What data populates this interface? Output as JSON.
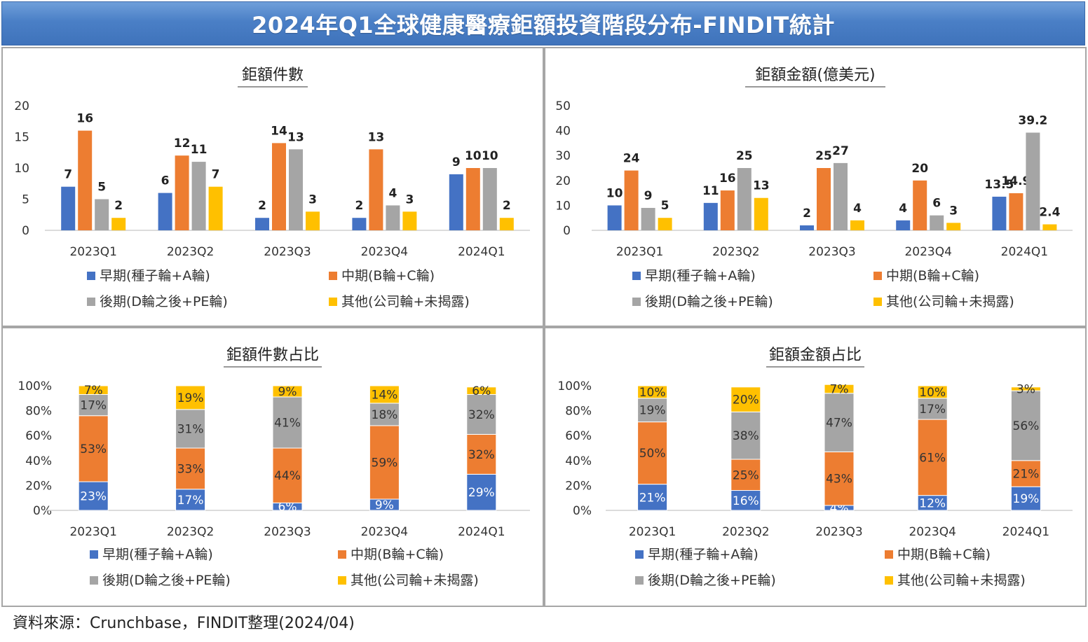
{
  "title": "2024年Q1全球健康醫療鉅額投資階段分布-FINDIT統計",
  "source": "資料來源：Crunchbase，FINDIT整理(2024/04)",
  "colors": {
    "early": "#4472c4",
    "mid": "#ed7d31",
    "late": "#a5a5a5",
    "other": "#ffc000"
  },
  "chart_data": [
    {
      "type": "bar",
      "title": "鉅額件數",
      "categories": [
        "2023Q1",
        "2023Q2",
        "2023Q3",
        "2023Q4",
        "2024Q1"
      ],
      "series": [
        {
          "name": "早期(種子輪+A輪)",
          "values": [
            7,
            6,
            2,
            2,
            9
          ],
          "labels": [
            "7",
            "6",
            "2",
            "2",
            "9"
          ]
        },
        {
          "name": "中期(B輪+C輪)",
          "values": [
            16,
            12,
            14,
            13,
            10
          ],
          "labels": [
            "16",
            "12",
            "14",
            "13",
            "10"
          ]
        },
        {
          "name": "後期(D輪之後+PE輪)",
          "values": [
            5,
            11,
            13,
            4,
            10
          ],
          "labels": [
            "5",
            "11",
            "13",
            "4",
            "10"
          ]
        },
        {
          "name": "其他(公司輪+未揭露)",
          "values": [
            2,
            7,
            3,
            3,
            2
          ],
          "labels": [
            "2",
            "7",
            "3",
            "3",
            "2"
          ]
        }
      ],
      "ylim": [
        0,
        20
      ],
      "yticks": [
        "0",
        "5",
        "10",
        "15",
        "20"
      ],
      "ytick_values": [
        0,
        5,
        10,
        15,
        20
      ],
      "legend_position": "bottom",
      "grid": false
    },
    {
      "type": "bar",
      "title": "鉅額金額(億美元)",
      "categories": [
        "2023Q1",
        "2023Q2",
        "2023Q3",
        "2023Q4",
        "2024Q1"
      ],
      "series": [
        {
          "name": "早期(種子輪+A輪)",
          "values": [
            10,
            11,
            2,
            4,
            13.5
          ],
          "labels": [
            "10",
            "11",
            "2",
            "4",
            "13.5"
          ]
        },
        {
          "name": "中期(B輪+C輪)",
          "values": [
            24,
            16,
            25,
            20,
            14.9
          ],
          "labels": [
            "24",
            "16",
            "25",
            "20",
            "14.9"
          ]
        },
        {
          "name": "後期(D輪之後+PE輪)",
          "values": [
            9,
            25,
            27,
            6,
            39.2
          ],
          "labels": [
            "9",
            "25",
            "27",
            "6",
            "39.2"
          ]
        },
        {
          "name": "其他(公司輪+未揭露)",
          "values": [
            5,
            13,
            4,
            3,
            2.4
          ],
          "labels": [
            "5",
            "13",
            "4",
            "3",
            "2.4"
          ]
        }
      ],
      "ylim": [
        0,
        50
      ],
      "yticks": [
        "0",
        "10",
        "20",
        "30",
        "40",
        "50"
      ],
      "ytick_values": [
        0,
        10,
        20,
        30,
        40,
        50
      ],
      "legend_position": "bottom",
      "grid": false
    },
    {
      "type": "bar",
      "stacked": true,
      "title": "鉅額件數占比",
      "categories": [
        "2023Q1",
        "2023Q2",
        "2023Q3",
        "2023Q4",
        "2024Q1"
      ],
      "series": [
        {
          "name": "早期(種子輪+A輪)",
          "values": [
            23,
            17,
            6,
            9,
            29
          ],
          "labels": [
            "23%",
            "17%",
            "6%",
            "9%",
            "29%"
          ]
        },
        {
          "name": "中期(B輪+C輪)",
          "values": [
            53,
            33,
            44,
            59,
            32
          ],
          "labels": [
            "53%",
            "33%",
            "44%",
            "59%",
            "32%"
          ]
        },
        {
          "name": "後期(D輪之後+PE輪)",
          "values": [
            17,
            31,
            41,
            18,
            32
          ],
          "labels": [
            "17%",
            "31%",
            "41%",
            "18%",
            "32%"
          ]
        },
        {
          "name": "其他(公司輪+未揭露)",
          "values": [
            7,
            19,
            9,
            14,
            6
          ],
          "labels": [
            "7%",
            "19%",
            "9%",
            "14%",
            "6%"
          ]
        }
      ],
      "ylim": [
        0,
        100
      ],
      "yticks": [
        "0%",
        "20%",
        "40%",
        "60%",
        "80%",
        "100%"
      ],
      "ytick_values": [
        0,
        20,
        40,
        60,
        80,
        100
      ],
      "legend_position": "bottom",
      "grid": false
    },
    {
      "type": "bar",
      "stacked": true,
      "title": "鉅額金額占比",
      "categories": [
        "2023Q1",
        "2023Q2",
        "2023Q3",
        "2023Q4",
        "2024Q1"
      ],
      "series": [
        {
          "name": "早期(種子輪+A輪)",
          "values": [
            21,
            16,
            4,
            12,
            19
          ],
          "labels": [
            "21%",
            "16%",
            "4%",
            "12%",
            "19%"
          ]
        },
        {
          "name": "中期(B輪+C輪)",
          "values": [
            50,
            25,
            43,
            61,
            21
          ],
          "labels": [
            "50%",
            "25%",
            "43%",
            "61%",
            "21%"
          ]
        },
        {
          "name": "後期(D輪之後+PE輪)",
          "values": [
            19,
            38,
            47,
            17,
            56
          ],
          "labels": [
            "19%",
            "38%",
            "47%",
            "17%",
            "56%"
          ]
        },
        {
          "name": "其他(公司輪+未揭露)",
          "values": [
            10,
            20,
            7,
            10,
            3
          ],
          "labels": [
            "10%",
            "20%",
            "7%",
            "10%",
            "3%"
          ]
        }
      ],
      "ylim": [
        0,
        100
      ],
      "yticks": [
        "0%",
        "20%",
        "40%",
        "60%",
        "80%",
        "100%"
      ],
      "ytick_values": [
        0,
        20,
        40,
        60,
        80,
        100
      ],
      "legend_position": "bottom",
      "grid": false
    }
  ]
}
